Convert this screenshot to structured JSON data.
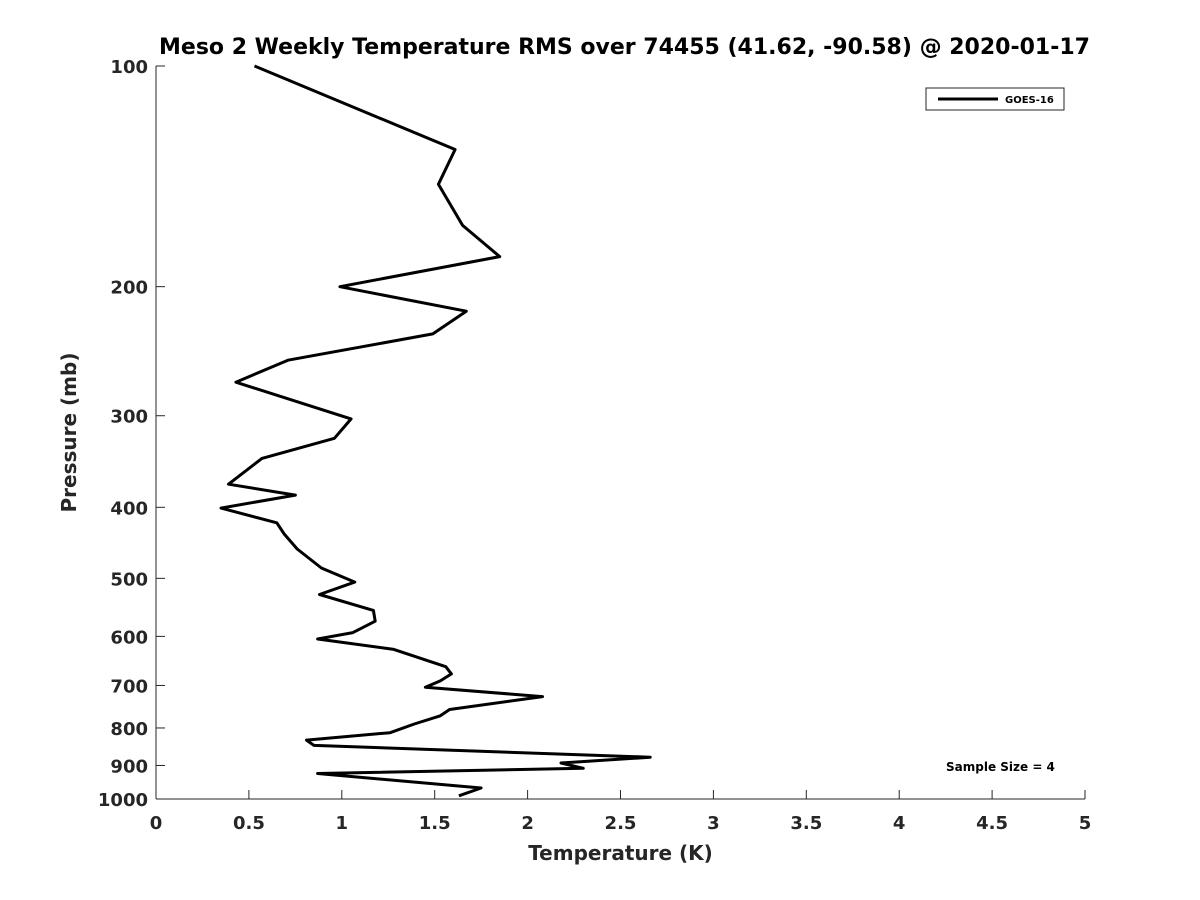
{
  "chart_data": {
    "type": "line",
    "title": "Meso 2 Weekly Temperature RMS over 74455 (41.62, -90.58) @ 2020-01-17",
    "xlabel": "Temperature (K)",
    "ylabel": "Pressure (mb)",
    "xlim": [
      0,
      5
    ],
    "ylim": [
      100,
      1000
    ],
    "y_scale": "log",
    "y_reversed": true,
    "x_ticks": [
      "0",
      "0.5",
      "1",
      "1.5",
      "2",
      "2.5",
      "3",
      "3.5",
      "4",
      "4.5",
      "5"
    ],
    "y_ticks": [
      "100",
      "200",
      "300",
      "400",
      "500",
      "600",
      "700",
      "800",
      "900",
      "1000"
    ],
    "grid": false,
    "legend_position": "top-right",
    "series": [
      {
        "name": "GOES-16",
        "color": "#000000",
        "x": [
          0.53,
          1.61,
          1.52,
          1.65,
          1.85,
          0.99,
          1.67,
          1.49,
          0.71,
          0.43,
          1.05,
          0.96,
          0.57,
          0.39,
          0.75,
          0.35,
          0.65,
          0.69,
          0.76,
          0.89,
          1.07,
          0.88,
          1.17,
          1.18,
          1.06,
          0.87,
          1.28,
          1.56,
          1.59,
          1.53,
          1.45,
          2.08,
          1.58,
          1.53,
          1.39,
          1.26,
          0.81,
          0.85,
          2.66,
          2.18,
          2.3,
          0.87,
          1.75,
          1.63
        ],
        "y": [
          100,
          130,
          145,
          165,
          182,
          200,
          216,
          232,
          252,
          270,
          303,
          322,
          343,
          372,
          385,
          401,
          420,
          435,
          456,
          484,
          506,
          526,
          553,
          572,
          593,
          605,
          625,
          660,
          675,
          690,
          704,
          725,
          755,
          770,
          790,
          812,
          831,
          845,
          877,
          893,
          908,
          923,
          966,
          990
        ]
      }
    ],
    "annotations": [
      "Sample Size = 4"
    ]
  }
}
